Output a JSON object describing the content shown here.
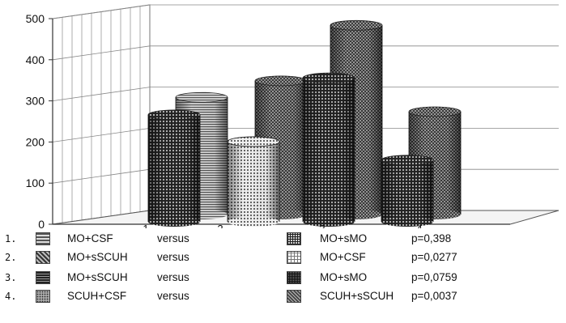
{
  "chart_data": {
    "type": "bar",
    "title": "",
    "xlabel": "",
    "ylabel": "",
    "ylim": [
      0,
      500
    ],
    "yticks": [
      "0",
      "100",
      "200",
      "300",
      "400",
      "500"
    ],
    "categories": [
      "1",
      "2",
      "3",
      "4"
    ],
    "grid": true,
    "series": [
      {
        "values": [
          285,
          325,
          460,
          250
        ]
      },
      {
        "values": [
          260,
          195,
          350,
          150
        ]
      }
    ],
    "style": "3d-cylinder"
  },
  "legend": {
    "rows": [
      {
        "num": "1.",
        "left": "MO+CSF",
        "versus": "versus",
        "right": "MO+sMO",
        "p": "p=0,398",
        "pat_a": "pat-stripes",
        "pat_b": "pat-grid"
      },
      {
        "num": "2.",
        "left": "MO+sSCUH",
        "versus": "versus",
        "right": "MO+CSF",
        "p": "p=0,0277",
        "pat_a": "pat-checker",
        "pat_b": "pat-light"
      },
      {
        "num": "3.",
        "left": "MO+sSCUH",
        "versus": "versus",
        "right": "MO+sMO",
        "p": "p=0,0759",
        "pat_a": "pat-hlines",
        "pat_b": "pat-dense"
      },
      {
        "num": "4.",
        "left": "SCUH+CSF",
        "versus": "versus",
        "right": "SCUH+sSCUH",
        "p": "p=0,0037",
        "pat_a": "pat-dots",
        "pat_b": "pat-mesh"
      }
    ]
  }
}
